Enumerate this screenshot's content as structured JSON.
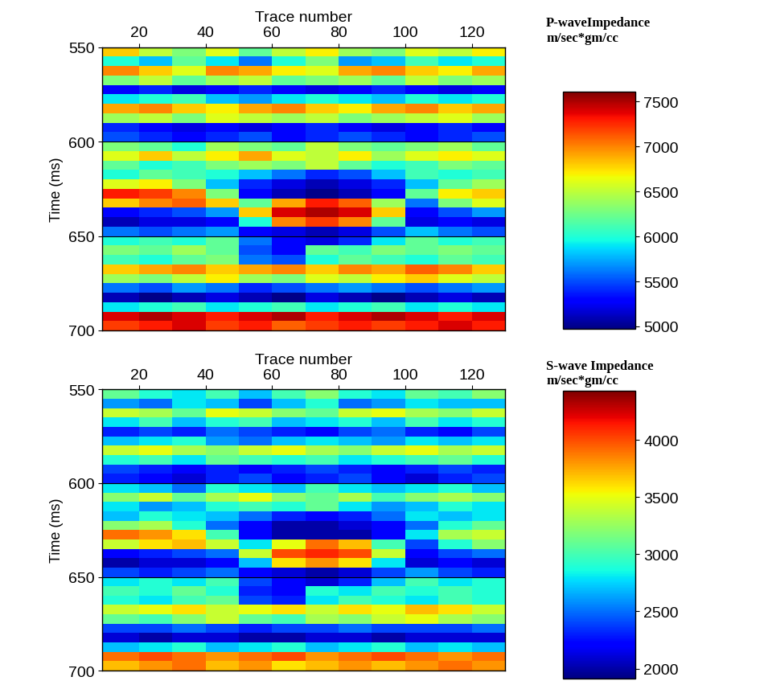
{
  "chart_data": [
    {
      "type": "heatmap",
      "x_label": "Trace number",
      "y_label": "Time (ms)",
      "xlim": [
        9,
        130
      ],
      "xticks": [
        20,
        40,
        60,
        80,
        100,
        120
      ],
      "ylim": [
        700,
        550
      ],
      "yticks": [
        550,
        600,
        650,
        700
      ],
      "grid": true,
      "x_edges": [
        9,
        20,
        30,
        40,
        50,
        60,
        70,
        80,
        90,
        100,
        110,
        120,
        130
      ],
      "y_edges": [
        550,
        555,
        560,
        565,
        570,
        575,
        580,
        585,
        590,
        595,
        600,
        605,
        610,
        615,
        620,
        625,
        630,
        635,
        640,
        645,
        650,
        655,
        660,
        665,
        670,
        675,
        680,
        685,
        690,
        695,
        700
      ],
      "cells": [
        [
          6800,
          6500,
          6300,
          6600,
          6200,
          6500,
          6700,
          6400,
          6300,
          6600,
          6500,
          6700
        ],
        [
          6000,
          5800,
          6200,
          5900,
          5600,
          6000,
          6300,
          5700,
          5800,
          6100,
          5900,
          6000
        ],
        [
          7000,
          6800,
          6600,
          7000,
          6900,
          6700,
          6600,
          6900,
          7000,
          6800,
          6700,
          6900
        ],
        [
          6300,
          6500,
          6200,
          6400,
          6500,
          6200,
          6300,
          6400,
          6200,
          6500,
          6300,
          6400
        ],
        [
          5300,
          5400,
          5200,
          5300,
          5400,
          5300,
          5200,
          5300,
          5400,
          5300,
          5200,
          5300
        ],
        [
          5900,
          6000,
          6100,
          5800,
          5700,
          5900,
          6000,
          5900,
          5800,
          6000,
          5900,
          6000
        ],
        [
          6900,
          7000,
          6800,
          6700,
          6900,
          7000,
          6800,
          6700,
          6900,
          7000,
          6800,
          6900
        ],
        [
          6400,
          6500,
          6300,
          6600,
          6500,
          6400,
          6500,
          6300,
          6400,
          6500,
          6600,
          6400
        ],
        [
          5400,
          5300,
          5200,
          5300,
          5200,
          5300,
          5400,
          5300,
          5200,
          5300,
          5400,
          5300
        ],
        [
          5500,
          5400,
          5300,
          5400,
          5500,
          5300,
          5400,
          5500,
          5400,
          5300,
          5400,
          5500
        ],
        [
          6300,
          6200,
          6000,
          6400,
          6300,
          6200,
          6500,
          6300,
          6200,
          6300,
          6400,
          6200
        ],
        [
          6600,
          6800,
          6500,
          6700,
          6900,
          6600,
          6500,
          6700,
          6400,
          6600,
          6700,
          6600
        ],
        [
          6200,
          6000,
          6100,
          6300,
          6400,
          6300,
          6500,
          6200,
          6000,
          6100,
          6300,
          6200
        ],
        [
          6000,
          6200,
          6100,
          6000,
          5800,
          5600,
          5400,
          5500,
          5800,
          6100,
          6000,
          6100
        ],
        [
          6600,
          6700,
          6300,
          5800,
          5400,
          5200,
          5100,
          5200,
          5400,
          5800,
          6200,
          6400
        ],
        [
          7300,
          7200,
          7000,
          6300,
          5300,
          5100,
          5000,
          5100,
          5300,
          6200,
          6700,
          6800
        ],
        [
          6800,
          7000,
          7100,
          6800,
          6200,
          6900,
          7300,
          7100,
          6400,
          5600,
          6300,
          6600
        ],
        [
          5300,
          5400,
          5500,
          5700,
          6800,
          7400,
          7500,
          7400,
          6800,
          5300,
          5500,
          5700
        ],
        [
          5100,
          5200,
          5200,
          5300,
          6000,
          7000,
          7200,
          7000,
          6200,
          5200,
          5300,
          5200
        ],
        [
          5600,
          5500,
          5600,
          5700,
          5300,
          5200,
          5100,
          5200,
          5500,
          5800,
          5600,
          5500
        ],
        [
          6000,
          6100,
          6000,
          6200,
          5600,
          5300,
          5200,
          5400,
          5900,
          6200,
          6000,
          6100
        ],
        [
          6300,
          6200,
          6400,
          6200,
          5500,
          5300,
          6200,
          6100,
          6300,
          6200,
          6300,
          6200
        ],
        [
          6100,
          6000,
          6200,
          6300,
          5600,
          5500,
          6000,
          6200,
          6100,
          6000,
          6200,
          6100
        ],
        [
          6800,
          6900,
          7000,
          6800,
          6900,
          7000,
          6800,
          7000,
          6900,
          7100,
          7000,
          6800
        ],
        [
          6400,
          6300,
          6500,
          6700,
          6400,
          6300,
          6600,
          6500,
          6700,
          6800,
          6600,
          6500
        ],
        [
          5600,
          5500,
          5700,
          5600,
          5400,
          5500,
          5600,
          5700,
          5600,
          5500,
          5600,
          5700
        ],
        [
          5100,
          5000,
          5100,
          5200,
          5100,
          5000,
          5200,
          5100,
          5000,
          5100,
          5200,
          5100
        ],
        [
          5900,
          6000,
          6100,
          5900,
          6000,
          6100,
          5900,
          6000,
          6100,
          5900,
          6000,
          5900
        ],
        [
          7400,
          7500,
          7400,
          7300,
          7400,
          7500,
          7300,
          7400,
          7500,
          7400,
          7300,
          7400
        ],
        [
          7200,
          7300,
          7400,
          7200,
          7300,
          7100,
          7200,
          7300,
          7200,
          7300,
          7400,
          7300
        ]
      ],
      "colorbar_label": "P-waveImpedance\nm/sec*gm/cc",
      "colorbar_range": [
        4970,
        7610
      ],
      "colorbar_ticks": [
        5000,
        5500,
        6000,
        6500,
        7000,
        7500
      ]
    },
    {
      "type": "heatmap",
      "x_label": "Trace number",
      "y_label": "Time (ms)",
      "xlim": [
        9,
        130
      ],
      "xticks": [
        20,
        40,
        60,
        80,
        100,
        120
      ],
      "ylim": [
        700,
        550
      ],
      "yticks": [
        550,
        600,
        650,
        700
      ],
      "grid": true,
      "x_edges": [
        9,
        20,
        30,
        40,
        50,
        60,
        70,
        80,
        90,
        100,
        110,
        120,
        130
      ],
      "y_edges": [
        550,
        555,
        560,
        565,
        570,
        575,
        580,
        585,
        590,
        595,
        600,
        605,
        610,
        615,
        620,
        625,
        630,
        635,
        640,
        645,
        650,
        655,
        660,
        665,
        670,
        675,
        680,
        685,
        690,
        695,
        700
      ],
      "cells": [
        [
          3100,
          2900,
          2800,
          3000,
          2700,
          3000,
          3200,
          2900,
          2800,
          3100,
          3000,
          3200
        ],
        [
          2600,
          2500,
          2800,
          2700,
          2400,
          2700,
          2900,
          2500,
          2600,
          2800,
          2700,
          2700
        ],
        [
          3400,
          3300,
          3100,
          3500,
          3400,
          3200,
          3100,
          3400,
          3500,
          3300,
          3200,
          3400
        ],
        [
          2800,
          3000,
          2700,
          2900,
          3000,
          2700,
          2800,
          2900,
          2700,
          3000,
          2800,
          2900
        ],
        [
          2300,
          2400,
          2300,
          2500,
          2400,
          2300,
          2200,
          2400,
          2500,
          2300,
          2200,
          2400
        ],
        [
          2700,
          2800,
          2900,
          2600,
          2500,
          2700,
          2800,
          2700,
          2600,
          2800,
          2700,
          2800
        ],
        [
          3400,
          3500,
          3300,
          3200,
          3400,
          3500,
          3300,
          3200,
          3400,
          3500,
          3300,
          3400
        ],
        [
          2900,
          3000,
          2800,
          3100,
          3000,
          2900,
          3000,
          2800,
          2900,
          3000,
          3100,
          2900
        ],
        [
          2400,
          2300,
          2200,
          2300,
          2200,
          2300,
          2400,
          2300,
          2200,
          2300,
          2400,
          2300
        ],
        [
          2300,
          2200,
          2100,
          2300,
          2400,
          2200,
          2300,
          2400,
          2200,
          2100,
          2300,
          2400
        ],
        [
          2800,
          2700,
          2500,
          2900,
          2800,
          2700,
          3000,
          2800,
          2700,
          2800,
          2900,
          2700
        ],
        [
          3200,
          3400,
          3100,
          3300,
          3500,
          3200,
          3100,
          3300,
          3000,
          3200,
          3300,
          3200
        ],
        [
          2800,
          2600,
          2700,
          2900,
          3000,
          2900,
          3100,
          2800,
          2600,
          2700,
          2900,
          2800
        ],
        [
          2700,
          2900,
          2800,
          2700,
          2500,
          2300,
          2200,
          2300,
          2500,
          2800,
          2700,
          2800
        ],
        [
          3200,
          3300,
          2900,
          2500,
          2200,
          2000,
          2000,
          2100,
          2200,
          2500,
          2900,
          3100
        ],
        [
          3900,
          3800,
          3600,
          3000,
          2200,
          2000,
          2000,
          2000,
          2200,
          2800,
          3300,
          3400
        ],
        [
          3400,
          3600,
          3700,
          3400,
          2800,
          3500,
          3900,
          3700,
          3000,
          2400,
          2900,
          3200
        ],
        [
          2200,
          2300,
          2400,
          2500,
          3400,
          4000,
          4100,
          4000,
          3400,
          2200,
          2400,
          2500
        ],
        [
          2000,
          2100,
          2100,
          2200,
          2700,
          3600,
          3800,
          3600,
          2800,
          2100,
          2200,
          2100
        ],
        [
          2400,
          2300,
          2400,
          2500,
          2200,
          2100,
          2000,
          2100,
          2400,
          2600,
          2400,
          2300
        ],
        [
          2800,
          2900,
          2800,
          3000,
          2400,
          2200,
          2100,
          2300,
          2700,
          3000,
          2800,
          2900
        ],
        [
          3000,
          2900,
          3100,
          2900,
          2300,
          2200,
          2900,
          2800,
          3000,
          2900,
          3000,
          2900
        ],
        [
          2900,
          2800,
          3000,
          3100,
          2400,
          2300,
          2800,
          3000,
          2900,
          2800,
          3000,
          2900
        ],
        [
          3400,
          3500,
          3600,
          3400,
          3500,
          3600,
          3400,
          3600,
          3500,
          3700,
          3600,
          3400
        ],
        [
          3100,
          3000,
          3200,
          3400,
          3100,
          3000,
          3300,
          3200,
          3400,
          3500,
          3300,
          3200
        ],
        [
          2400,
          2400,
          2500,
          2400,
          2300,
          2400,
          2400,
          2500,
          2400,
          2400,
          2400,
          2500
        ],
        [
          2100,
          2000,
          2100,
          2100,
          2000,
          2000,
          2100,
          2100,
          2000,
          2100,
          2100,
          2100
        ],
        [
          2700,
          2800,
          2900,
          2700,
          2800,
          2900,
          2700,
          2800,
          2900,
          2700,
          2800,
          2700
        ],
        [
          3900,
          4000,
          3900,
          3800,
          3900,
          4000,
          3800,
          3900,
          4000,
          3900,
          3800,
          3900
        ],
        [
          3700,
          3800,
          3900,
          3700,
          3800,
          3600,
          3700,
          3800,
          3700,
          3800,
          3900,
          3800
        ]
      ],
      "colorbar_label": "S-wave Impedance\nm/sec*gm/cc",
      "colorbar_range": [
        1910,
        4430
      ],
      "colorbar_ticks": [
        2000,
        2500,
        3000,
        3500,
        4000
      ]
    }
  ]
}
